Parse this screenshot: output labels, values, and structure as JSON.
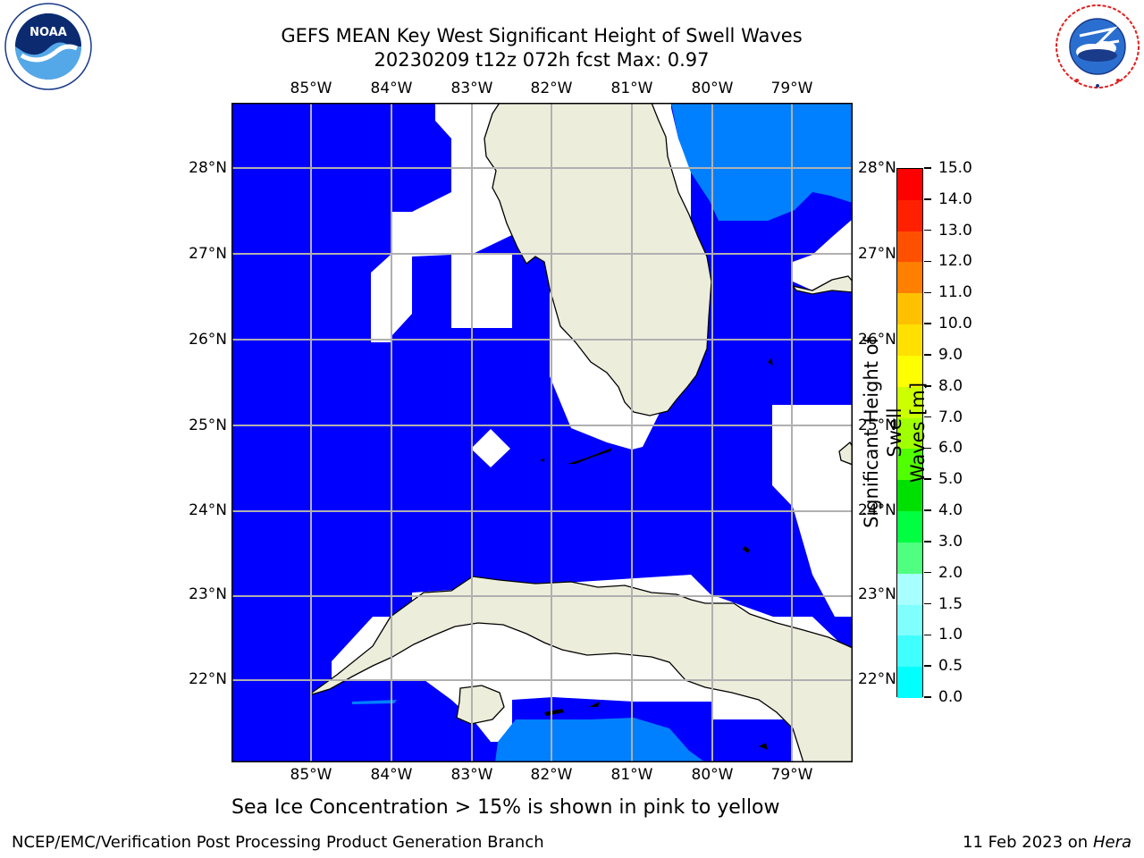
{
  "title": {
    "line1": "GEFS MEAN Key West Significant Height of Swell Waves",
    "line2": "20230209 t12z 072h fcst   Max: 0.97"
  },
  "logos": {
    "left": {
      "icon": "noaa-logo",
      "text": "NOAA",
      "ring_text": "NATIONAL OCEANIC AND ATMOSPHERIC ADMINISTRATION · U.S. DEPARTMENT OF COMMERCE"
    },
    "right": {
      "icon": "nws-logo",
      "ring_text": "NATIONAL WEATHER SERVICE"
    }
  },
  "map": {
    "lon_ticks": [
      "85°W",
      "84°W",
      "83°W",
      "82°W",
      "81°W",
      "80°W",
      "79°W"
    ],
    "lat_ticks": [
      "28°N",
      "27°N",
      "26°N",
      "25°N",
      "24°N",
      "23°N",
      "22°N"
    ],
    "colors": {
      "ocean_low": "#0000ff",
      "ocean_mid": "#0080ff",
      "land": "#ededdc",
      "nodata": "#ffffff",
      "grid": "#b0b0b0"
    }
  },
  "colorbar": {
    "label": "Significant Height of Swell Waves [m]",
    "label_lines": [
      "Significant Height of Swell",
      "Waves [m]"
    ],
    "ticks": [
      "15.0",
      "14.0",
      "13.0",
      "12.0",
      "11.0",
      "10.0",
      "9.0",
      "8.0",
      "7.0",
      "6.0",
      "5.0",
      "4.0",
      "3.0",
      "2.0",
      "1.5",
      "1.0",
      "0.5",
      "0.0"
    ],
    "colors": [
      "#0000ff",
      "#0080ff",
      "#00ffff",
      "#40ffff",
      "#80ffff",
      "#a8ffff",
      "#50ff80",
      "#00ff40",
      "#00e000",
      "#50ff00",
      "#a0ff00",
      "#ccff00",
      "#ffff00",
      "#ffe000",
      "#ffc000",
      "#ff8000",
      "#ff5000",
      "#ff2000",
      "#ff0000"
    ]
  },
  "subtitle": "Sea Ice Concentration > 15% is shown in pink to yellow",
  "footer": {
    "left": "NCEP/EMC/Verification Post Processing Product Generation Branch",
    "date": "11 Feb 2023 on",
    "host": "Hera"
  }
}
